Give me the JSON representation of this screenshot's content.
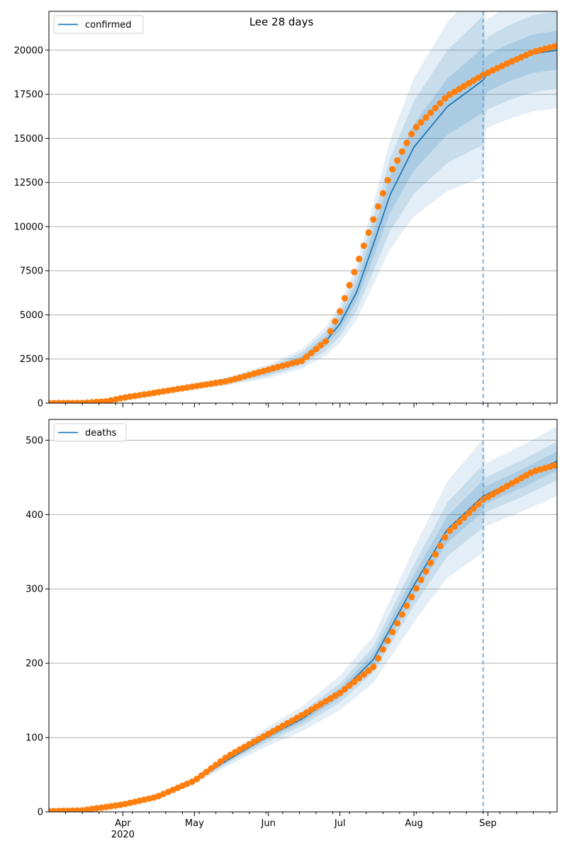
{
  "chart_data": {
    "title": "Lee 28 days",
    "type": "line",
    "x_axis": {
      "start": "2020-03-01",
      "end": "2020-09-30",
      "month_ticks": [
        {
          "date": "2020-04-01",
          "label": "Apr",
          "sublabel": "2020"
        },
        {
          "date": "2020-05-01",
          "label": "May"
        },
        {
          "date": "2020-06-01",
          "label": "Jun"
        },
        {
          "date": "2020-07-01",
          "label": "Jul"
        },
        {
          "date": "2020-08-01",
          "label": "Aug"
        },
        {
          "date": "2020-09-01",
          "label": "Sep"
        }
      ],
      "minor_ticks": "weekly"
    },
    "forecast_start": "2020-08-30",
    "colors": {
      "model": "#1f77b4",
      "observed": "#ff7f0e",
      "band": "#1f77b4",
      "vline": "#5fa2dd",
      "grid": "#b0b0b0"
    },
    "panels": [
      {
        "name": "confirmed",
        "legend": "confirmed",
        "ylim": [
          0,
          22200
        ],
        "yticks": [
          0,
          2500,
          5000,
          7500,
          10000,
          12500,
          15000,
          17500,
          20000
        ],
        "grid": true,
        "legend_position": "top-left",
        "model_curve": [
          [
            "2020-03-01",
            20
          ],
          [
            "2020-03-15",
            40
          ],
          [
            "2020-03-25",
            120
          ],
          [
            "2020-04-01",
            300
          ],
          [
            "2020-04-15",
            600
          ],
          [
            "2020-05-01",
            950
          ],
          [
            "2020-05-15",
            1250
          ],
          [
            "2020-06-01",
            1800
          ],
          [
            "2020-06-15",
            2500
          ],
          [
            "2020-06-25",
            3500
          ],
          [
            "2020-07-01",
            4500
          ],
          [
            "2020-07-08",
            6300
          ],
          [
            "2020-07-15",
            9000
          ],
          [
            "2020-07-22",
            11800
          ],
          [
            "2020-08-01",
            14500
          ],
          [
            "2020-08-15",
            16800
          ],
          [
            "2020-08-30",
            18300
          ],
          [
            "2020-09-01",
            18700
          ],
          [
            "2020-09-10",
            19300
          ],
          [
            "2020-09-20",
            19800
          ],
          [
            "2020-09-30",
            20000
          ]
        ],
        "band_rel": [
          0.1,
          0.2,
          0.3
        ],
        "observed": [
          [
            "2020-03-01",
            0
          ],
          [
            "2020-03-15",
            10
          ],
          [
            "2020-03-25",
            100
          ],
          [
            "2020-04-01",
            300
          ],
          [
            "2020-04-15",
            600
          ],
          [
            "2020-05-01",
            950
          ],
          [
            "2020-05-15",
            1250
          ],
          [
            "2020-06-01",
            1900
          ],
          [
            "2020-06-15",
            2400
          ],
          [
            "2020-06-25",
            3500
          ],
          [
            "2020-07-01",
            5200
          ],
          [
            "2020-07-08",
            7800
          ],
          [
            "2020-07-15",
            10400
          ],
          [
            "2020-07-22",
            13000
          ],
          [
            "2020-08-01",
            15500
          ],
          [
            "2020-08-15",
            17400
          ],
          [
            "2020-08-30",
            18600
          ],
          [
            "2020-09-10",
            19300
          ],
          [
            "2020-09-20",
            19900
          ],
          [
            "2020-09-30",
            20250
          ]
        ]
      },
      {
        "name": "deaths",
        "legend": "deaths",
        "ylim": [
          0,
          528
        ],
        "yticks": [
          0,
          100,
          200,
          300,
          400,
          500
        ],
        "grid": true,
        "legend_position": "top-left",
        "model_curve": [
          [
            "2020-03-01",
            0
          ],
          [
            "2020-03-15",
            2
          ],
          [
            "2020-04-01",
            10
          ],
          [
            "2020-04-15",
            20
          ],
          [
            "2020-05-01",
            42
          ],
          [
            "2020-05-15",
            70
          ],
          [
            "2020-06-01",
            102
          ],
          [
            "2020-06-15",
            125
          ],
          [
            "2020-07-01",
            160
          ],
          [
            "2020-07-15",
            205
          ],
          [
            "2020-08-01",
            305
          ],
          [
            "2020-08-15",
            380
          ],
          [
            "2020-08-30",
            425
          ],
          [
            "2020-09-15",
            448
          ],
          [
            "2020-09-30",
            472
          ]
        ],
        "band_rel": [
          0.05,
          0.1,
          0.18
        ],
        "observed": [
          [
            "2020-03-01",
            1
          ],
          [
            "2020-03-15",
            2
          ],
          [
            "2020-04-01",
            10
          ],
          [
            "2020-04-15",
            20
          ],
          [
            "2020-05-01",
            42
          ],
          [
            "2020-05-15",
            75
          ],
          [
            "2020-06-01",
            105
          ],
          [
            "2020-06-15",
            130
          ],
          [
            "2020-07-01",
            160
          ],
          [
            "2020-07-15",
            195
          ],
          [
            "2020-08-01",
            295
          ],
          [
            "2020-08-15",
            375
          ],
          [
            "2020-08-30",
            420
          ],
          [
            "2020-09-10",
            440
          ],
          [
            "2020-09-20",
            458
          ],
          [
            "2020-09-30",
            467
          ]
        ]
      }
    ]
  }
}
